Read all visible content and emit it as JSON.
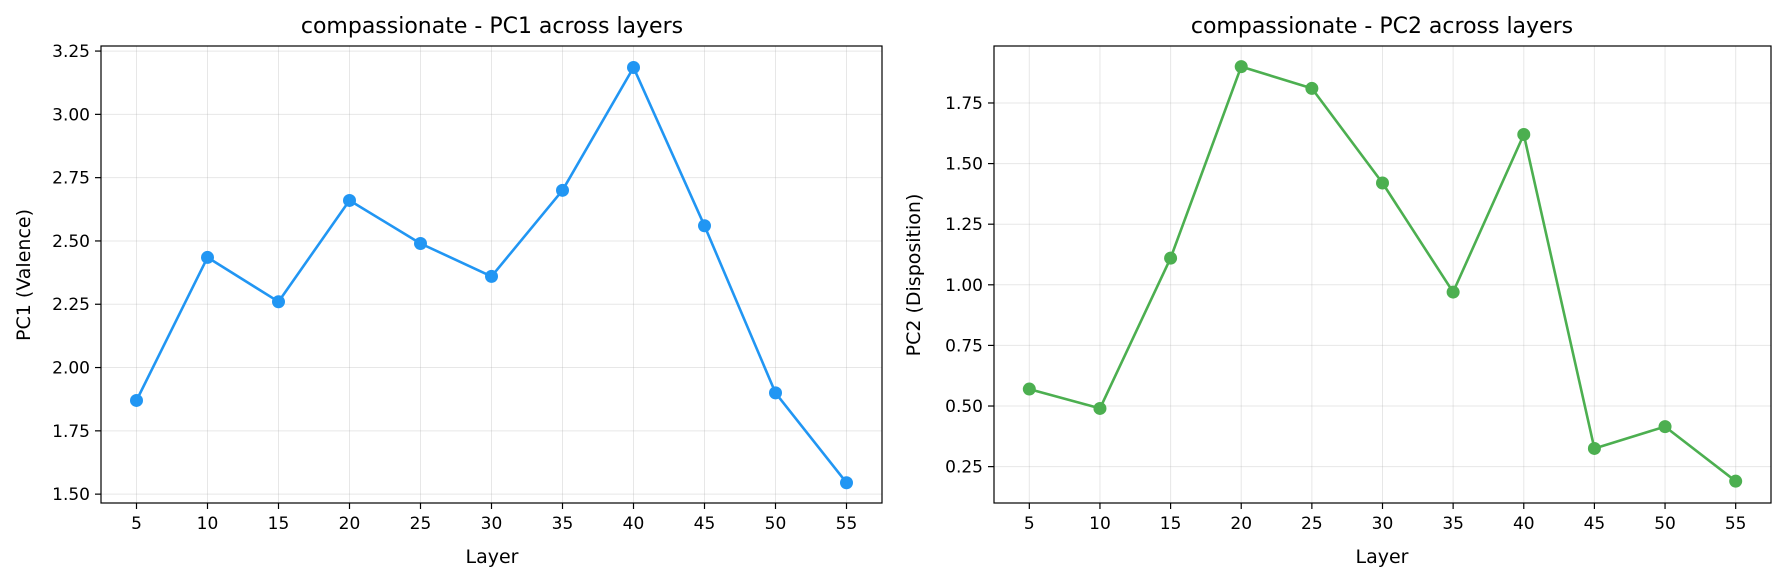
{
  "chart_data": [
    {
      "type": "line",
      "title": "compassionate - PC1 across layers",
      "xlabel": "Layer",
      "ylabel": "PC1 (Valence)",
      "x": [
        5,
        10,
        15,
        20,
        25,
        30,
        35,
        40,
        45,
        50,
        55
      ],
      "xticks": [
        "5",
        "10",
        "15",
        "20",
        "25",
        "30",
        "35",
        "40",
        "45",
        "50",
        "55"
      ],
      "xlim": [
        2.5,
        57.5
      ],
      "ylim": [
        1.465,
        3.27
      ],
      "yticks": [
        "1.50",
        "1.75",
        "2.00",
        "2.25",
        "2.50",
        "2.75",
        "3.00",
        "3.25"
      ],
      "grid": true,
      "color": "#2196F3",
      "series": [
        {
          "values": [
            1.87,
            2.435,
            2.26,
            2.66,
            2.49,
            2.36,
            2.7,
            3.185,
            2.56,
            1.9,
            1.545
          ]
        }
      ]
    },
    {
      "type": "line",
      "title": "compassionate - PC2 across layers",
      "xlabel": "Layer",
      "ylabel": "PC2 (Disposition)",
      "x": [
        5,
        10,
        15,
        20,
        25,
        30,
        35,
        40,
        45,
        50,
        55
      ],
      "xticks": [
        "5",
        "10",
        "15",
        "20",
        "25",
        "30",
        "35",
        "40",
        "45",
        "50",
        "55"
      ],
      "xlim": [
        2.5,
        57.5
      ],
      "ylim": [
        0.1,
        1.985
      ],
      "yticks": [
        "0.25",
        "0.50",
        "0.75",
        "1.00",
        "1.25",
        "1.50",
        "1.75"
      ],
      "grid": true,
      "color": "#4CAF50",
      "series": [
        {
          "values": [
            0.57,
            0.49,
            1.11,
            1.9,
            1.81,
            1.42,
            0.97,
            1.62,
            0.325,
            0.415,
            0.19
          ]
        }
      ]
    }
  ]
}
